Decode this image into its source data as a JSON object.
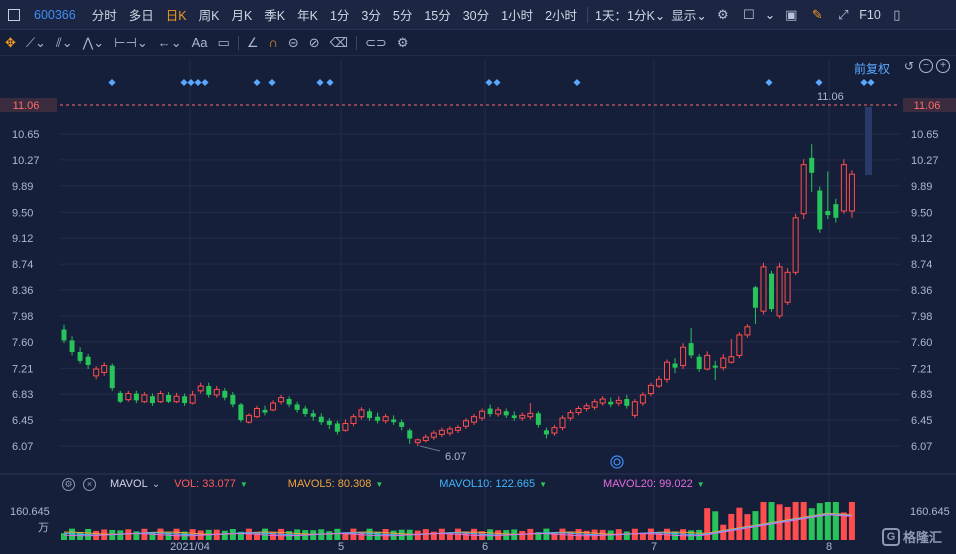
{
  "toolbar": {
    "symbol": "600366",
    "periods": [
      "分时",
      "多日",
      "日K",
      "周K",
      "月K",
      "季K",
      "年K",
      "1分",
      "3分",
      "5分",
      "15分",
      "30分",
      "1小时",
      "2小时"
    ],
    "active_period": "日K",
    "range_select": "1天：1分K",
    "display_select": "显示",
    "f10_label": "F10"
  },
  "draw_toolbar": {
    "text_tool_label": "Aa"
  },
  "chart": {
    "restore_label": "前复权",
    "last_price_label": "11.06",
    "high_annotation": "11.06",
    "low_annotation": "6.07",
    "y_tick_labels": [
      "10.65",
      "10.27",
      "9.89",
      "9.50",
      "9.12",
      "8.74",
      "8.36",
      "7.98",
      "7.60",
      "7.21",
      "6.83",
      "6.45",
      "6.07"
    ],
    "x_tick_labels": [
      "2021/04",
      "5",
      "6",
      "7",
      "8"
    ],
    "colors": {
      "up": "#ff4d4d",
      "down": "#27c45a",
      "dashed_line": "#ff6b6b",
      "price_tag": "#2a3a68"
    }
  },
  "volume": {
    "name": "MAVOL",
    "vol_label": "VOL: 33.077",
    "ma5_label": "MAVOL5: 80.308",
    "ma10_label": "MAVOL10: 122.665",
    "ma20_label": "MAVOL20: 99.022",
    "axis_top": "160.645",
    "axis_unit": "万",
    "right_axis_top": "160.645",
    "colors": {
      "vol": "#ff5a5a",
      "ma5": "#f0a43a",
      "ma10": "#3fb6ff",
      "ma20": "#e36be0"
    }
  },
  "watermark": "格隆汇"
}
